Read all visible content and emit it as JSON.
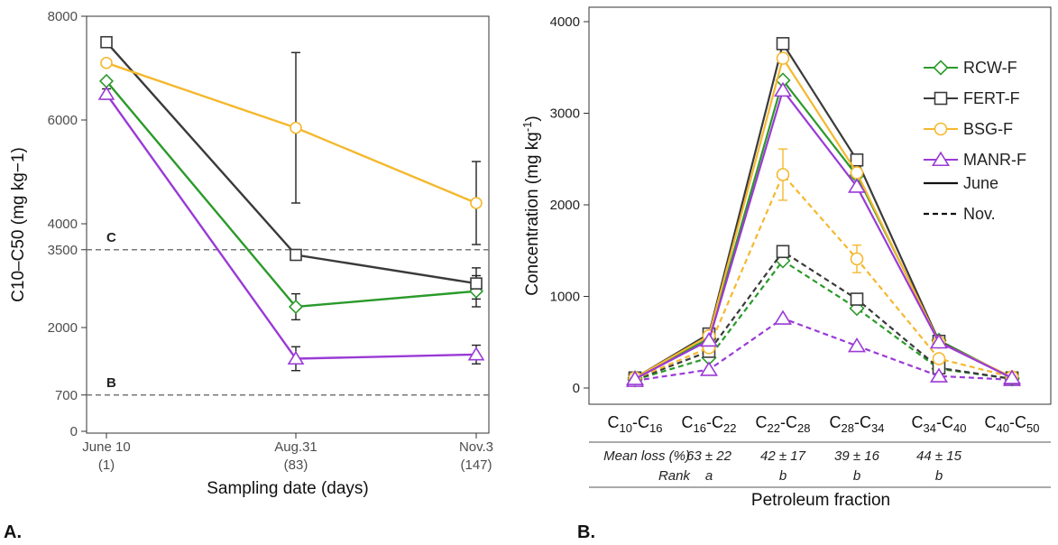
{
  "colors": {
    "RCW-F": "#2a9a2a",
    "FERT-F": "#3a3a3a",
    "BSG-F": "#f5b82e",
    "MANR-F": "#9a3ad6",
    "threshold": "#777777"
  },
  "panel_labels": [
    "A.",
    "B."
  ],
  "chart_data": [
    {
      "type": "line",
      "panel": "A.",
      "xlabel": "Sampling date (days)",
      "ylabel": "C10–C50 (mg kg−1)",
      "categories": [
        {
          "date": "June 10",
          "day": "(1)"
        },
        {
          "date": "Aug.31",
          "day": "(83)"
        },
        {
          "date": "Nov.3",
          "day": "(147)"
        }
      ],
      "y_ticks": [
        0,
        700,
        2000,
        3500,
        4000,
        6000,
        8000
      ],
      "ylim": [
        0,
        8000
      ],
      "thresholds": [
        {
          "label": "C",
          "value": 3500
        },
        {
          "label": "B",
          "value": 700
        }
      ],
      "series": [
        {
          "name": "RCW-F",
          "marker": "diamond",
          "values": [
            6750,
            2400,
            2700
          ],
          "err": [
            0,
            250,
            300
          ]
        },
        {
          "name": "FERT-F",
          "marker": "square",
          "values": [
            7500,
            3400,
            2850
          ],
          "err": [
            0,
            0,
            300
          ]
        },
        {
          "name": "BSG-F",
          "marker": "circle",
          "values": [
            7100,
            5850,
            4400
          ],
          "err": [
            0,
            1450,
            800
          ]
        },
        {
          "name": "MANR-F",
          "marker": "triangle",
          "values": [
            6500,
            1400,
            1480
          ],
          "err": [
            100,
            230,
            180
          ]
        }
      ]
    },
    {
      "type": "line",
      "panel": "B.",
      "xlabel": "Petroleum fraction",
      "ylabel": "Concentration (mg kg",
      "ylabel_sup": "-1",
      "ylabel_end": ")",
      "categories": [
        {
          "base": "C",
          "sub1": "10",
          "sep": "-C",
          "sub2": "16"
        },
        {
          "base": "C",
          "sub1": "16",
          "sep": "-C",
          "sub2": "22"
        },
        {
          "base": "C",
          "sub1": "22",
          "sep": "-C",
          "sub2": "28"
        },
        {
          "base": "C",
          "sub1": "28",
          "sep": "-C",
          "sub2": "34"
        },
        {
          "base": "C",
          "sub1": "34",
          "sep": "-C",
          "sub2": "40"
        },
        {
          "base": "C",
          "sub1": "40",
          "sep": "-C",
          "sub2": "50"
        }
      ],
      "y_ticks": [
        0,
        1000,
        2000,
        3000,
        4000
      ],
      "ylim": [
        0,
        4000
      ],
      "legend": {
        "placement": "top-right",
        "entries": [
          "RCW-F",
          "FERT-F",
          "BSG-F",
          "MANR-F"
        ],
        "line_styles": [
          {
            "label": "June",
            "dash": "solid"
          },
          {
            "label": "Nov.",
            "dash": "dashed"
          }
        ]
      },
      "series": [
        {
          "name": "RCW-F",
          "period": "June",
          "marker": "diamond",
          "values": [
            110,
            540,
            3360,
            2320,
            520,
            110
          ]
        },
        {
          "name": "FERT-F",
          "period": "June",
          "marker": "square",
          "values": [
            110,
            590,
            3760,
            2490,
            510,
            110
          ]
        },
        {
          "name": "BSG-F",
          "period": "June",
          "marker": "circle",
          "values": [
            110,
            570,
            3600,
            2350,
            500,
            120
          ]
        },
        {
          "name": "MANR-F",
          "period": "June",
          "marker": "triangle",
          "values": [
            100,
            520,
            3250,
            2200,
            500,
            110
          ]
        },
        {
          "name": "RCW-F",
          "period": "Nov.",
          "marker": "diamond",
          "values": [
            90,
            330,
            1390,
            870,
            210,
            100
          ]
        },
        {
          "name": "FERT-F",
          "period": "Nov.",
          "marker": "square",
          "values": [
            90,
            400,
            1490,
            970,
            220,
            100
          ]
        },
        {
          "name": "BSG-F",
          "period": "Nov.",
          "marker": "circle",
          "values": [
            100,
            440,
            2330,
            1410,
            320,
            120
          ],
          "err": [
            0,
            0,
            280,
            150,
            0,
            0
          ]
        },
        {
          "name": "MANR-F",
          "period": "Nov.",
          "marker": "triangle",
          "values": [
            80,
            200,
            760,
            460,
            130,
            90
          ]
        }
      ],
      "table": {
        "row_labels": [
          "Mean loss (%)",
          "Rank"
        ],
        "mean_loss": [
          "",
          "63 ± 22",
          "42 ± 17",
          "39 ± 16",
          "44 ± 15",
          ""
        ],
        "rank": [
          "",
          "a",
          "b",
          "b",
          "b",
          ""
        ]
      }
    }
  ]
}
